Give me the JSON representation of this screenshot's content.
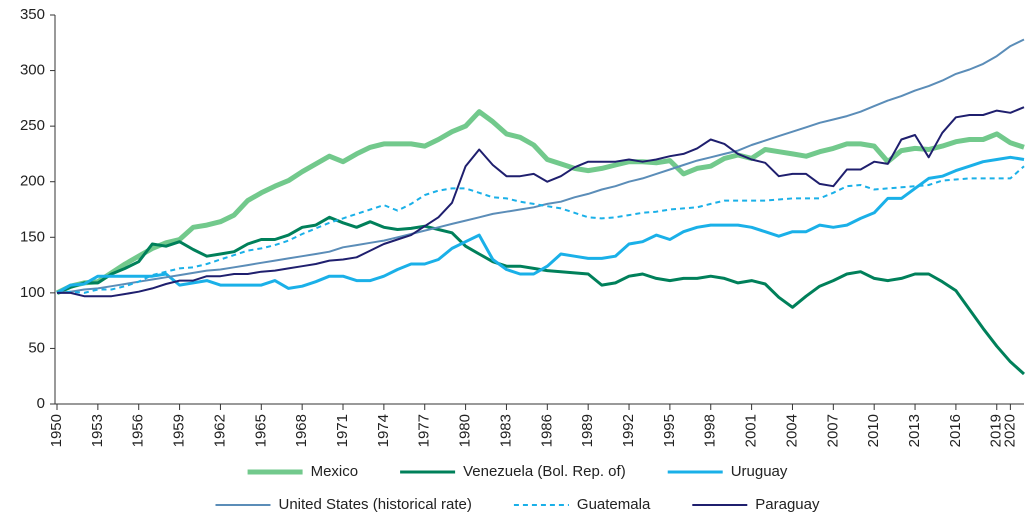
{
  "chart_data": {
    "type": "line",
    "x": [
      1950,
      1951,
      1952,
      1953,
      1954,
      1955,
      1956,
      1957,
      1958,
      1959,
      1960,
      1961,
      1962,
      1963,
      1964,
      1965,
      1966,
      1967,
      1968,
      1969,
      1970,
      1971,
      1972,
      1973,
      1974,
      1975,
      1976,
      1977,
      1978,
      1979,
      1980,
      1981,
      1982,
      1983,
      1984,
      1985,
      1986,
      1987,
      1988,
      1989,
      1990,
      1991,
      1992,
      1993,
      1994,
      1995,
      1996,
      1997,
      1998,
      1999,
      2000,
      2001,
      2002,
      2003,
      2004,
      2005,
      2006,
      2007,
      2008,
      2009,
      2010,
      2011,
      2012,
      2013,
      2014,
      2015,
      2016,
      2017,
      2018,
      2019,
      2020,
      2021
    ],
    "xlim": [
      1950,
      2021
    ],
    "xticks": [
      1950,
      1953,
      1956,
      1959,
      1962,
      1965,
      1968,
      1971,
      1974,
      1977,
      1980,
      1983,
      1986,
      1989,
      1992,
      1995,
      1998,
      2001,
      2004,
      2007,
      2010,
      2013,
      2016,
      2019,
      2020
    ],
    "ylim": [
      0,
      350
    ],
    "yticks": [
      0,
      50,
      100,
      150,
      200,
      250,
      300,
      350
    ],
    "grid": false,
    "series": [
      {
        "name": "Mexico",
        "color": "#72c98c",
        "line_width": 5,
        "dashed": false,
        "values": [
          100,
          106,
          109,
          110,
          118,
          126,
          133,
          140,
          145,
          148,
          159,
          161,
          164,
          170,
          183,
          190,
          196,
          201,
          209,
          216,
          223,
          218,
          225,
          231,
          234,
          234,
          234,
          232,
          238,
          245,
          250,
          263,
          254,
          243,
          240,
          233,
          220,
          216,
          212,
          210,
          212,
          215,
          218,
          218,
          217,
          219,
          207,
          212,
          214,
          221,
          224,
          221,
          229,
          227,
          225,
          223,
          227,
          230,
          234,
          234,
          232,
          218,
          228,
          230,
          229,
          232,
          236,
          238,
          238,
          243,
          235,
          231
        ]
      },
      {
        "name": "Venezuela (Bol. Rep. of)",
        "color": "#00805a",
        "line_width": 3,
        "dashed": false,
        "values": [
          100,
          105,
          109,
          109,
          117,
          122,
          128,
          144,
          142,
          146,
          139,
          133,
          135,
          137,
          144,
          148,
          148,
          152,
          159,
          161,
          168,
          163,
          159,
          164,
          159,
          157,
          158,
          160,
          157,
          154,
          142,
          135,
          128,
          124,
          124,
          122,
          120,
          119,
          118,
          117,
          107,
          109,
          115,
          117,
          113,
          111,
          113,
          113,
          115,
          113,
          109,
          111,
          108,
          96,
          87,
          97,
          106,
          111,
          117,
          119,
          113,
          111,
          113,
          117,
          117,
          110,
          102,
          85,
          68,
          52,
          38,
          27
        ]
      },
      {
        "name": "Uruguay",
        "color": "#1ab0e8",
        "line_width": 3,
        "dashed": false,
        "values": [
          100,
          107,
          108,
          115,
          115,
          115,
          115,
          115,
          117,
          107,
          109,
          111,
          107,
          107,
          107,
          107,
          111,
          104,
          106,
          110,
          115,
          115,
          111,
          111,
          115,
          121,
          126,
          126,
          130,
          140,
          146,
          152,
          130,
          121,
          117,
          117,
          124,
          135,
          133,
          131,
          131,
          133,
          144,
          146,
          152,
          148,
          155,
          159,
          161,
          161,
          161,
          159,
          155,
          151,
          155,
          155,
          161,
          159,
          161,
          167,
          172,
          185,
          185,
          194,
          203,
          205,
          210,
          214,
          218,
          220,
          222,
          220
        ]
      },
      {
        "name": "United States (historical rate)",
        "color": "#5b8db8",
        "line_width": 2,
        "dashed": false,
        "values": [
          100,
          101,
          103,
          104,
          106,
          108,
          110,
          112,
          114,
          116,
          118,
          120,
          121,
          123,
          125,
          127,
          129,
          131,
          133,
          135,
          137,
          141,
          143,
          145,
          147,
          150,
          153,
          156,
          159,
          162,
          165,
          168,
          171,
          173,
          175,
          177,
          180,
          182,
          186,
          189,
          193,
          196,
          200,
          203,
          207,
          211,
          215,
          219,
          222,
          225,
          228,
          233,
          237,
          241,
          245,
          249,
          253,
          256,
          259,
          263,
          268,
          273,
          277,
          282,
          286,
          291,
          297,
          301,
          306,
          313,
          322,
          328
        ]
      },
      {
        "name": "Guatemala",
        "color": "#1ab0e8",
        "line_width": 2,
        "dashed": true,
        "values": [
          100,
          101,
          100,
          103,
          103,
          106,
          110,
          116,
          119,
          122,
          123,
          126,
          130,
          134,
          138,
          140,
          143,
          147,
          153,
          158,
          163,
          167,
          171,
          175,
          179,
          174,
          180,
          188,
          192,
          194,
          194,
          190,
          186,
          185,
          182,
          180,
          178,
          176,
          172,
          168,
          167,
          168,
          170,
          172,
          173,
          175,
          176,
          177,
          180,
          183,
          183,
          183,
          183,
          184,
          185,
          185,
          185,
          190,
          196,
          197,
          193,
          194,
          195,
          196,
          197,
          201,
          202,
          203,
          203,
          203,
          203,
          214
        ]
      },
      {
        "name": "Paraguay",
        "color": "#1f1f6e",
        "line_width": 2,
        "dashed": false,
        "values": [
          100,
          100,
          97,
          97,
          97,
          99,
          101,
          104,
          108,
          111,
          111,
          115,
          115,
          117,
          117,
          119,
          120,
          122,
          124,
          126,
          129,
          130,
          132,
          138,
          144,
          148,
          152,
          160,
          168,
          181,
          214,
          229,
          215,
          205,
          205,
          207,
          200,
          205,
          213,
          218,
          218,
          218,
          220,
          218,
          220,
          223,
          225,
          230,
          238,
          234,
          225,
          220,
          217,
          205,
          207,
          207,
          198,
          196,
          211,
          211,
          218,
          216,
          238,
          242,
          222,
          244,
          258,
          260,
          260,
          264,
          262,
          267
        ]
      }
    ]
  }
}
